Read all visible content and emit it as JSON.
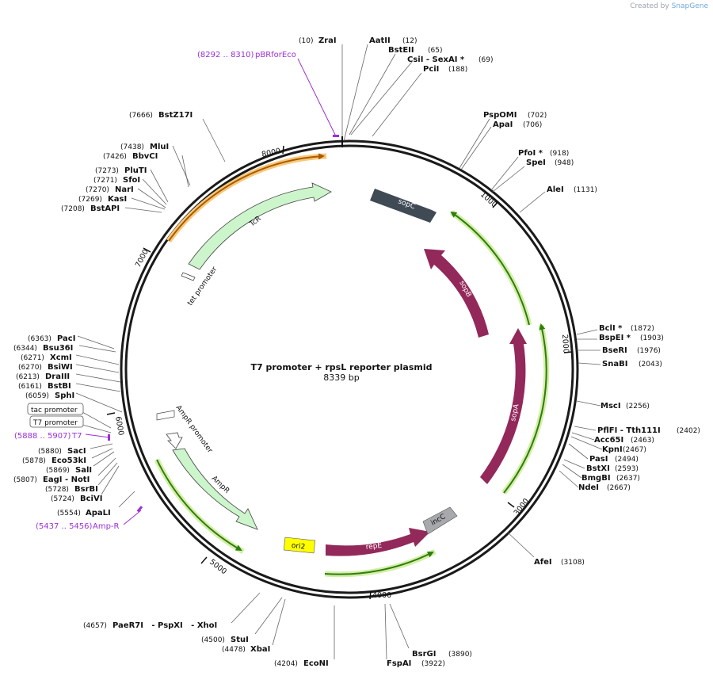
{
  "credit": {
    "prefix": "Created by",
    "brand": "SnapGene"
  },
  "plasmid": {
    "name": "T7 promoter + rpsL reporter plasmid",
    "size_label": "8339 bp",
    "length": 8339
  },
  "ticks": [
    {
      "bp": 1000,
      "label": "1000"
    },
    {
      "bp": 2000,
      "label": "2000"
    },
    {
      "bp": 3000,
      "label": "3000"
    },
    {
      "bp": 4000,
      "label": "4000"
    },
    {
      "bp": 5000,
      "label": "5000"
    },
    {
      "bp": 6000,
      "label": "6000"
    },
    {
      "bp": 7000,
      "label": "7000"
    },
    {
      "bp": 8000,
      "label": "8000"
    }
  ],
  "sites": [
    {
      "name": "ZraI",
      "pos": "(10)",
      "side": "L"
    },
    {
      "name": "AatII",
      "pos": "(12)",
      "side": "R"
    },
    {
      "name": "BstEII",
      "pos": "(65)",
      "side": "R"
    },
    {
      "name": "CsiI  - SexAI *",
      "pos": "(69)",
      "side": "R"
    },
    {
      "name": "PciI",
      "pos": "(188)",
      "side": "R"
    },
    {
      "name": "PspOMI",
      "pos": "(702)",
      "side": "R"
    },
    {
      "name": "ApaI",
      "pos": "(706)",
      "side": "R"
    },
    {
      "name": "PfoI *",
      "pos": "(918)",
      "side": "R"
    },
    {
      "name": "SpeI",
      "pos": "(948)",
      "side": "R"
    },
    {
      "name": "AleI",
      "pos": "(1131)",
      "side": "R"
    },
    {
      "name": "BclI *",
      "pos": "(1872)",
      "side": "R"
    },
    {
      "name": "BspEI *",
      "pos": "(1903)",
      "side": "R"
    },
    {
      "name": "BseRI",
      "pos": "(1976)",
      "side": "R"
    },
    {
      "name": "SnaBI",
      "pos": "(2043)",
      "side": "R"
    },
    {
      "name": "MscI",
      "pos": "(2256)",
      "side": "R"
    },
    {
      "name": "PflFI  - Tth111I",
      "pos": "(2402)",
      "side": "R"
    },
    {
      "name": "Acc65I",
      "pos": "(2463)",
      "side": "R"
    },
    {
      "name": "KpnI",
      "pos": "(2467)",
      "side": "R"
    },
    {
      "name": "PasI",
      "pos": "(2494)",
      "side": "R"
    },
    {
      "name": "BstXI",
      "pos": "(2593)",
      "side": "R"
    },
    {
      "name": "BmgBI",
      "pos": "(2637)",
      "side": "R"
    },
    {
      "name": "NdeI",
      "pos": "(2667)",
      "side": "R"
    },
    {
      "name": "AfeI",
      "pos": "(3108)",
      "side": "R"
    },
    {
      "name": "BsrGI",
      "pos": "(3890)",
      "side": "R"
    },
    {
      "name": "FspAI",
      "pos": "(3922)",
      "side": "R"
    },
    {
      "name": "EcoNI",
      "pos": "(4204)",
      "side": "R"
    },
    {
      "name": "XbaI",
      "pos": "(4478)",
      "side": "R"
    },
    {
      "name": "StuI",
      "pos": "(4500)",
      "side": "R"
    },
    {
      "name": "PaeR7I   - PspXI   - XhoI",
      "pos": "(4657)",
      "side": "L"
    },
    {
      "name": "ApaLI",
      "pos": "(5554)",
      "side": "L"
    },
    {
      "name": "BciVI",
      "pos": "(5724)",
      "side": "L"
    },
    {
      "name": "BsrBI",
      "pos": "(5728)",
      "side": "L"
    },
    {
      "name": "EagI  - NotI",
      "pos": "(5807)",
      "side": "L"
    },
    {
      "name": "SalI",
      "pos": "(5869)",
      "side": "L"
    },
    {
      "name": "Eco53kI",
      "pos": "(5878)",
      "side": "L"
    },
    {
      "name": "SacI",
      "pos": "(5880)",
      "side": "L"
    },
    {
      "name": "SphI",
      "pos": "(6059)",
      "side": "L"
    },
    {
      "name": "BstBI",
      "pos": "(6161)",
      "side": "L"
    },
    {
      "name": "DraIII",
      "pos": "(6213)",
      "side": "L"
    },
    {
      "name": "BsiWI",
      "pos": "(6270)",
      "side": "L"
    },
    {
      "name": "XcmI",
      "pos": "(6271)",
      "side": "L"
    },
    {
      "name": "Bsu36I",
      "pos": "(6344)",
      "side": "L"
    },
    {
      "name": "PacI",
      "pos": "(6363)",
      "side": "L"
    },
    {
      "name": "BstAPI",
      "pos": "(7208)",
      "side": "L"
    },
    {
      "name": "KasI",
      "pos": "(7269)",
      "side": "L"
    },
    {
      "name": "NarI",
      "pos": "(7270)",
      "side": "L"
    },
    {
      "name": "SfoI",
      "pos": "(7271)",
      "side": "L"
    },
    {
      "name": "PluTI",
      "pos": "(7273)",
      "side": "L"
    },
    {
      "name": "BbvCI",
      "pos": "(7426)",
      "side": "L"
    },
    {
      "name": "MluI",
      "pos": "(7438)",
      "side": "L"
    },
    {
      "name": "BstZ17I",
      "pos": "(7666)",
      "side": "L"
    }
  ],
  "primers": [
    {
      "name": "pBRforEco",
      "range": "(8292 .. 8310)"
    },
    {
      "name": "T7",
      "range": "(5888 .. 5907)"
    },
    {
      "name": "Amp-R",
      "range": "(5437 .. 5456)"
    }
  ],
  "promoter_boxes": [
    "tac promoter",
    "T7 promoter"
  ],
  "features": {
    "tcr": "TcR",
    "tet_promoter": "tet promoter",
    "sopC": "sopC",
    "sopB": "sopB",
    "sopA": "sopA",
    "incC": "incC",
    "repE": "repE",
    "ori2": "ori2",
    "ampR": "AmpR",
    "ampR_promoter": "AmpR promoter"
  },
  "colors": {
    "primer": "#9b30d9",
    "tcr_fill": "#ccf5cc",
    "sopC": "#3f4a55",
    "sop_maroon": "#93285a",
    "incC": "#a7a9ac",
    "ori2": "#ffff00",
    "orf_green": "#2e7d0f",
    "orf_glow": "#d4efa6",
    "orange_line": "#a85a00",
    "orange_glow": "#f8c87a"
  }
}
